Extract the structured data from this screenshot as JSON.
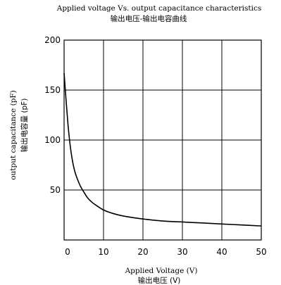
{
  "chart_data": {
    "type": "line",
    "title": "Applied voltage Vs. output capacitance characteristics",
    "subtitle": "输出电压-输出电容曲线",
    "xlabel": "Applied Voltage (V)",
    "xlabel_cn": "输出电压 (V)",
    "ylabel": "output capacitance (pF)",
    "ylabel_cn": "输出电容量 (pF)",
    "xlim": [
      0,
      50
    ],
    "ylim": [
      0,
      200
    ],
    "x_ticks": [
      "0",
      "10",
      "20",
      "30",
      "40",
      "50"
    ],
    "y_ticks": [
      "50",
      "100",
      "150",
      "200"
    ],
    "grid": true,
    "series": [
      {
        "x": [
          0,
          0.5,
          1,
          1.5,
          2,
          2.5,
          3,
          4,
          5,
          6,
          7,
          8,
          10,
          12,
          15,
          20,
          25,
          30,
          35,
          40,
          45,
          50
        ],
        "y": [
          167,
          140,
          115,
          96,
          82,
          72,
          65,
          55,
          48,
          42,
          38,
          35,
          30,
          27,
          24,
          21,
          19,
          18,
          17,
          16,
          15,
          14
        ]
      }
    ]
  }
}
